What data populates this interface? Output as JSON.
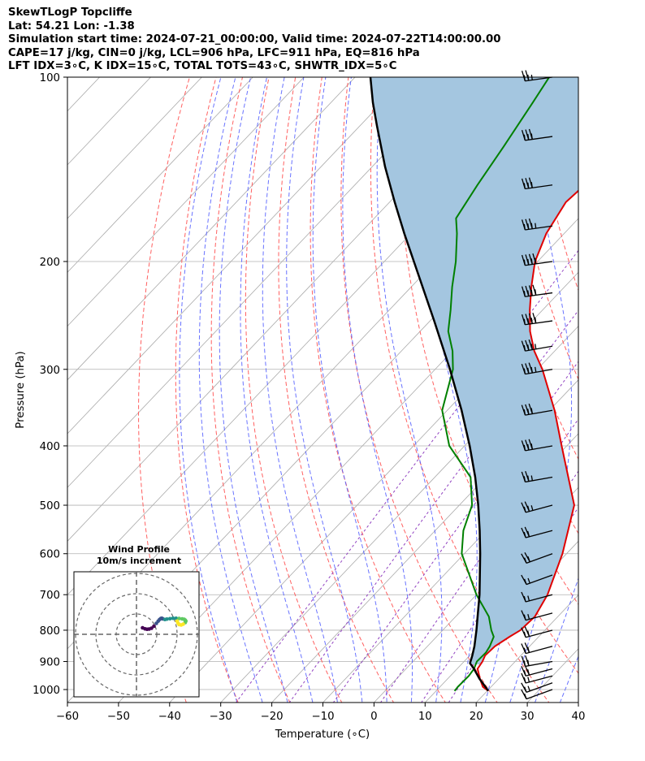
{
  "header": {
    "line1": "SkewTLogP Topcliffe",
    "line2": "Lat: 54.21   Lon: -1.38",
    "line3": "Simulation start time: 2024-07-21_00:00:00, Valid time: 2024-07-22T14:00:00.00",
    "line4": "CAPE=17 j/kg, CIN=0 j/kg, LCL=906 hPa, LFC=911 hPa, EQ=816 hPa",
    "line5": "LFT IDX=3∘C, K IDX=15∘C, TOTAL TOTS=43∘C, SHWTR_IDX=5∘C"
  },
  "chart_data": [
    {
      "type": "line",
      "chart": "skew-t log-p",
      "xlabel": "Temperature (∘C)",
      "ylabel": "Pressure (hPa)",
      "xlim": [
        -60,
        40
      ],
      "ylim": [
        1050,
        100
      ],
      "y_scale": "log",
      "grid": true,
      "x_ticks": [
        -60,
        -50,
        -40,
        -30,
        -20,
        -10,
        0,
        10,
        20,
        30,
        40
      ],
      "y_ticks": [
        1000,
        900,
        800,
        700,
        600,
        500,
        400,
        300,
        200,
        100
      ],
      "colors": {
        "temperature": "#e00000",
        "dewpoint": "#008000",
        "parcel": "#000000",
        "cape_fill": "#a4c6e0",
        "dry_adiabats": "#ff6060",
        "moist_adiabats": "#4f5bff",
        "mixing_ratio": "#9040c0",
        "isotherms": "#aaaaaa"
      },
      "series": [
        {
          "role": "temperature",
          "pressure": [
            1005,
            990,
            960,
            925,
            900,
            880,
            850,
            820,
            800,
            760,
            700,
            600,
            500,
            400,
            350,
            300,
            280,
            260,
            240,
            220,
            200,
            180,
            160,
            150,
            140,
            120,
            110,
            100
          ],
          "temperature": [
            20.2,
            18.4,
            16.3,
            14.0,
            13.6,
            13.0,
            13.2,
            14.3,
            15.2,
            15.5,
            13.9,
            9.2,
            2.5,
            -11.0,
            -19.0,
            -29.0,
            -34.0,
            -38.5,
            -42.5,
            -46.5,
            -50.5,
            -53.5,
            -55.5,
            -55.0,
            -53.0,
            -46.5,
            -40.5,
            -35.0
          ]
        },
        {
          "role": "dewpoint",
          "pressure": [
            1005,
            990,
            950,
            925,
            900,
            870,
            850,
            820,
            800,
            760,
            700,
            600,
            550,
            500,
            450,
            400,
            350,
            300,
            280,
            260,
            240,
            220,
            200,
            180,
            170,
            150,
            130,
            110,
            100
          ],
          "temperature": [
            13.6,
            13.5,
            13.6,
            13.3,
            12.5,
            12.6,
            12.2,
            11.2,
            9.5,
            6.5,
            0.0,
            -10.5,
            -14.5,
            -17.5,
            -23.0,
            -33.0,
            -41.0,
            -46.5,
            -50.0,
            -54.5,
            -58.0,
            -62.0,
            -66.0,
            -71.0,
            -74.0,
            -76.0,
            -78.0,
            -80.5,
            -82.0
          ]
        },
        {
          "role": "parcel",
          "pressure": [
            1005,
            990,
            960,
            925,
            906,
            880,
            850,
            800,
            750,
            700,
            650,
            600,
            550,
            500,
            450,
            400,
            350,
            300,
            250,
            200,
            180,
            160,
            140,
            120,
            110,
            100
          ],
          "temperature": [
            20.2,
            18.9,
            16.2,
            13.3,
            11.5,
            10.5,
            9.2,
            6.6,
            3.7,
            0.6,
            -3.0,
            -6.9,
            -11.3,
            -16.3,
            -22.1,
            -29.0,
            -37.2,
            -47.1,
            -59.2,
            -74.2,
            -81.3,
            -89.0,
            -97.5,
            -106.7,
            -111.8,
            -117.0
          ]
        }
      ],
      "wind_barbs": {
        "pressure": [
          1000,
          975,
          950,
          925,
          900,
          850,
          800,
          750,
          700,
          650,
          600,
          550,
          500,
          450,
          400,
          350,
          300,
          275,
          250,
          225,
          200,
          175,
          150,
          125,
          100
        ],
        "wind_speed_knots": [
          10,
          15,
          15,
          20,
          20,
          20,
          20,
          15,
          15,
          15,
          20,
          20,
          25,
          25,
          30,
          30,
          35,
          35,
          40,
          40,
          40,
          35,
          30,
          30,
          25
        ],
        "wind_direction_deg": [
          250,
          250,
          255,
          255,
          260,
          255,
          255,
          255,
          255,
          250,
          250,
          255,
          255,
          260,
          260,
          260,
          260,
          260,
          262,
          262,
          262,
          262,
          262,
          262,
          262
        ]
      }
    },
    {
      "type": "scatter",
      "chart": "hodograph",
      "title": "Wind Profile",
      "subtitle": "10m/s increment",
      "ring_increment_ms": 10,
      "rings": 3,
      "colormap": [
        "#440154",
        "#3b528b",
        "#21918c",
        "#5ec962",
        "#fde725"
      ],
      "u_ms": [
        3.0,
        4.2,
        5.2,
        6.2,
        7.4,
        8.6,
        9.8,
        10.7,
        11.4,
        12.0,
        12.5,
        13.0,
        14.0,
        15.0,
        16.5,
        18.0,
        19.5,
        21.0,
        22.5,
        23.5,
        24.0,
        24.3,
        24.0,
        23.0,
        22.0,
        21.0,
        20.5,
        20.0
      ],
      "v_ms": [
        3.2,
        2.7,
        2.5,
        2.6,
        3.0,
        4.0,
        5.4,
        6.5,
        7.3,
        7.8,
        7.9,
        7.6,
        7.3,
        7.5,
        7.7,
        7.9,
        7.9,
        7.8,
        7.6,
        7.4,
        7.0,
        6.5,
        5.8,
        5.0,
        4.6,
        4.8,
        5.5,
        6.5
      ]
    }
  ]
}
